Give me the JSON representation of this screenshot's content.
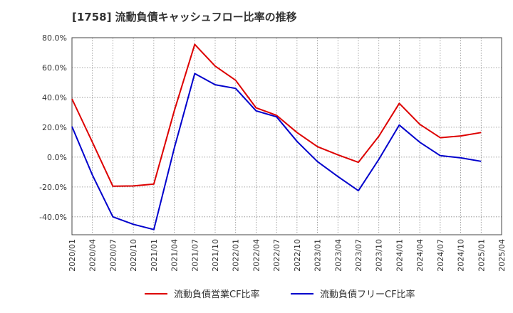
{
  "chart_data": {
    "type": "line",
    "title": "[1758]  流動負債キャッシュフロー比率の推移",
    "xlabel": "",
    "ylabel": "",
    "ylim": [
      -52,
      80
    ],
    "y_ticks": [
      80,
      60,
      40,
      20,
      0,
      -20,
      -40
    ],
    "y_tick_labels": [
      "80.0%",
      "60.0%",
      "40.0%",
      "20.0%",
      "0.0%",
      "-20.0%",
      "-40.0%"
    ],
    "x_tick_labels": [
      "2020/01",
      "2020/04",
      "2020/07",
      "2020/10",
      "2021/01",
      "2021/04",
      "2021/07",
      "2021/10",
      "2022/01",
      "2022/04",
      "2022/07",
      "2022/10",
      "2023/01",
      "2023/04",
      "2023/07",
      "2023/10",
      "2024/01",
      "2024/04",
      "2024/07",
      "2024/10",
      "2025/01",
      "2025/04"
    ],
    "grid": true,
    "legend_position": "bottom",
    "series": [
      {
        "name": "流動負債営業CF比率",
        "color": "#dd0000",
        "values": [
          39.0,
          10.0,
          -19.5,
          -19.3,
          -18.0,
          31.0,
          75.5,
          61.0,
          51.5,
          33.0,
          28.0,
          16.5,
          7.0,
          1.5,
          -3.5,
          14.0,
          36.0,
          22.0,
          13.0,
          14.2,
          16.5
        ]
      },
      {
        "name": "流動負債フリーCF比率",
        "color": "#0000cc",
        "values": [
          20.5,
          -12.0,
          -40.0,
          -45.0,
          -48.5,
          6.0,
          56.0,
          48.5,
          46.0,
          31.0,
          27.0,
          10.5,
          -3.0,
          -13.0,
          -22.5,
          -1.5,
          21.5,
          10.0,
          1.0,
          -0.5,
          -2.8
        ]
      }
    ]
  }
}
